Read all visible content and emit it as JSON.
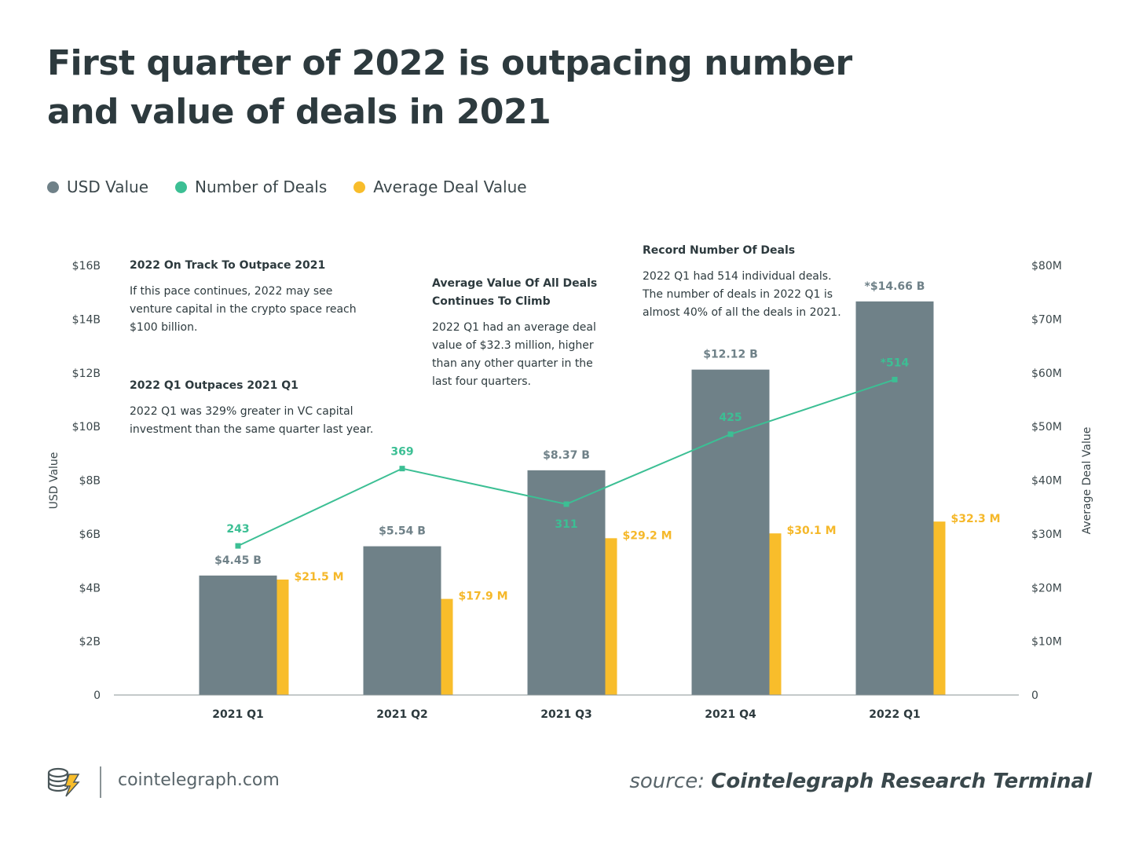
{
  "title": "First quarter of 2022 is outpacing number and value of deals in 2021",
  "legend": [
    {
      "label": "USD Value",
      "color": "#6f8188"
    },
    {
      "label": "Number of Deals",
      "color": "#3cbf94"
    },
    {
      "label": "Average Deal Value",
      "color": "#f8bd2b"
    }
  ],
  "chart_data": {
    "type": "bar",
    "categories": [
      "2021 Q1",
      "2021 Q2",
      "2021 Q3",
      "2021 Q4",
      "2022 Q1"
    ],
    "series": [
      {
        "name": "USD Value",
        "axis": "left",
        "type": "bar",
        "color": "#6f8188",
        "values": [
          4.45,
          5.54,
          8.37,
          12.12,
          14.66
        ],
        "labels": [
          "$4.45 B",
          "$5.54 B",
          "$8.37 B",
          "$12.12 B",
          "*$14.66 B"
        ]
      },
      {
        "name": "Average Deal Value",
        "axis": "right",
        "type": "bar",
        "color": "#f8bd2b",
        "values": [
          21.5,
          17.9,
          29.2,
          30.1,
          32.3
        ],
        "labels": [
          "$21.5 M",
          "$17.9 M",
          "$29.2 M",
          "$30.1 M",
          "$32.3 M"
        ]
      },
      {
        "name": "Number of Deals",
        "type": "line",
        "color": "#3cbf94",
        "values": [
          243,
          369,
          311,
          425,
          514
        ],
        "labels": [
          "243",
          "369",
          "311",
          "425",
          "*514"
        ]
      }
    ],
    "ylabel": "USD Value",
    "y2label": "Average Deal Value",
    "ylim": [
      0,
      16
    ],
    "y2lim": [
      0,
      80
    ],
    "left_ticks": [
      "0",
      "$2B",
      "$4B",
      "$6B",
      "$8B",
      "$10B",
      "$12B",
      "$14B",
      "$16B"
    ],
    "right_ticks": [
      "0",
      "$10M",
      "$20M",
      "$30M",
      "$40M",
      "$50M",
      "$60M",
      "$70M",
      "$80M"
    ],
    "grid": false,
    "legend_position": "top-left"
  },
  "annotations": [
    {
      "title": "2022 On Track To Outpace 2021",
      "lines": [
        "If this pace continues, 2022 may see",
        "venture capital in the crypto space reach",
        "$100 billion."
      ]
    },
    {
      "title": "2022 Q1 Outpaces 2021 Q1",
      "lines": [
        "2022 Q1 was 329% greater in VC capital",
        "investment than the same quarter last year."
      ]
    },
    {
      "title_lines": [
        "Average Value Of All Deals",
        "Continues To Climb"
      ],
      "lines": [
        "2022 Q1 had an average deal",
        "value of $32.3 million, higher",
        "than any other quarter in the",
        "last four quarters."
      ]
    },
    {
      "title": "Record Number Of Deals",
      "lines": [
        "2022 Q1 had 514 individual deals.",
        "The number of deals in 2022 Q1 is",
        "almost 40% of all the deals in 2021."
      ]
    }
  ],
  "footer": {
    "site": "cointelegraph.com",
    "source_prefix": "source:",
    "source_name": "Cointelegraph Research Terminal"
  }
}
